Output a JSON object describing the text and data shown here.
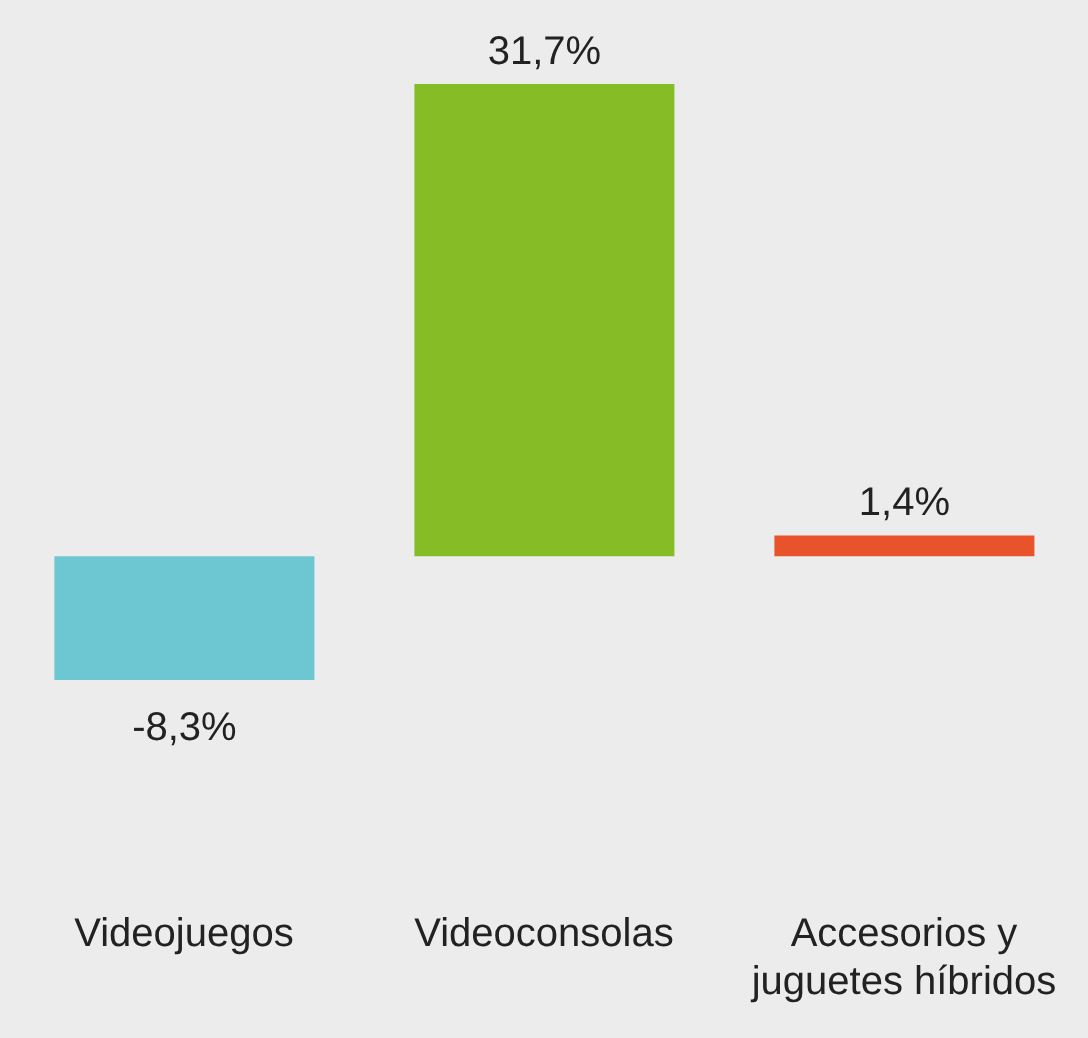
{
  "chart_data": {
    "type": "bar",
    "categories": [
      "Videojuegos",
      "Videoconsolas",
      "Accesorios y juguetes híbridos"
    ],
    "values": [
      -8.3,
      31.7,
      1.4
    ],
    "colors": [
      "#6cc7d2",
      "#86bc25",
      "#e8532b"
    ],
    "value_labels": [
      "-8,3%",
      "31,7%",
      "1,4%"
    ],
    "grid": false,
    "legend": false
  }
}
